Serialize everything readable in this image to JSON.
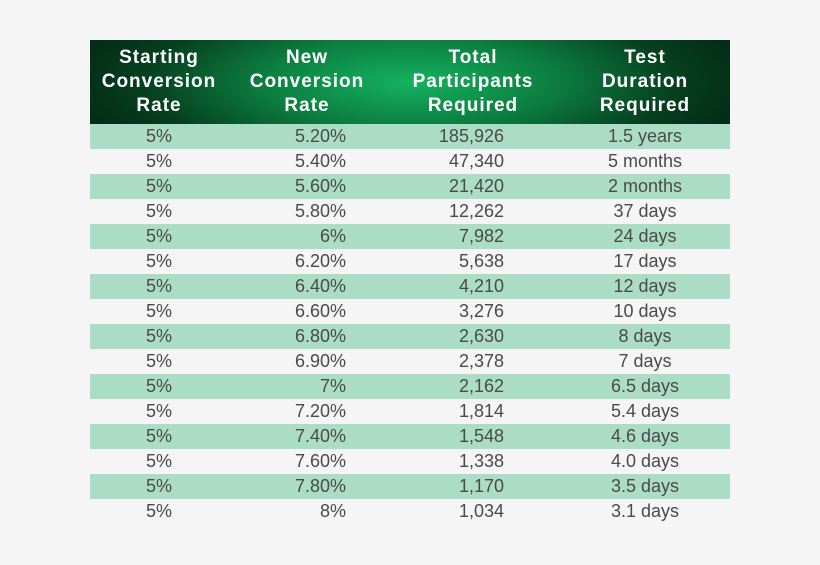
{
  "chart_data": {
    "type": "table",
    "columns": [
      "Starting\nConversion\nRate",
      "New\nConversion\nRate",
      "Total\nParticipants\nRequired",
      "Test\nDuration\nRequired"
    ],
    "rows": [
      [
        "5%",
        "5.20%",
        "185,926",
        "1.5 years"
      ],
      [
        "5%",
        "5.40%",
        "47,340",
        "5 months"
      ],
      [
        "5%",
        "5.60%",
        "21,420",
        "2 months"
      ],
      [
        "5%",
        "5.80%",
        "12,262",
        "37 days"
      ],
      [
        "5%",
        "6%",
        "7,982",
        "24 days"
      ],
      [
        "5%",
        "6.20%",
        "5,638",
        "17 days"
      ],
      [
        "5%",
        "6.40%",
        "4,210",
        "12 days"
      ],
      [
        "5%",
        "6.60%",
        "3,276",
        "10 days"
      ],
      [
        "5%",
        "6.80%",
        "2,630",
        "8 days"
      ],
      [
        "5%",
        "6.90%",
        "2,378",
        "7 days"
      ],
      [
        "5%",
        "7%",
        "2,162",
        "6.5 days"
      ],
      [
        "5%",
        "7.20%",
        "1,814",
        "5.4 days"
      ],
      [
        "5%",
        "7.40%",
        "1,548",
        "4.6 days"
      ],
      [
        "5%",
        "7.60%",
        "1,338",
        "4.0 days"
      ],
      [
        "5%",
        "7.80%",
        "1,170",
        "3.5 days"
      ],
      [
        "5%",
        "8%",
        "1,034",
        "3.1 days"
      ]
    ]
  },
  "colors": {
    "header_dark": "#042e17",
    "header_mid": "#0c7c3f",
    "header_light": "#14b25f",
    "row_shaded": "#abdcc6",
    "row_plain": "#f5f5f5",
    "text": "#4a4a4a",
    "header_text": "#ffffff"
  }
}
